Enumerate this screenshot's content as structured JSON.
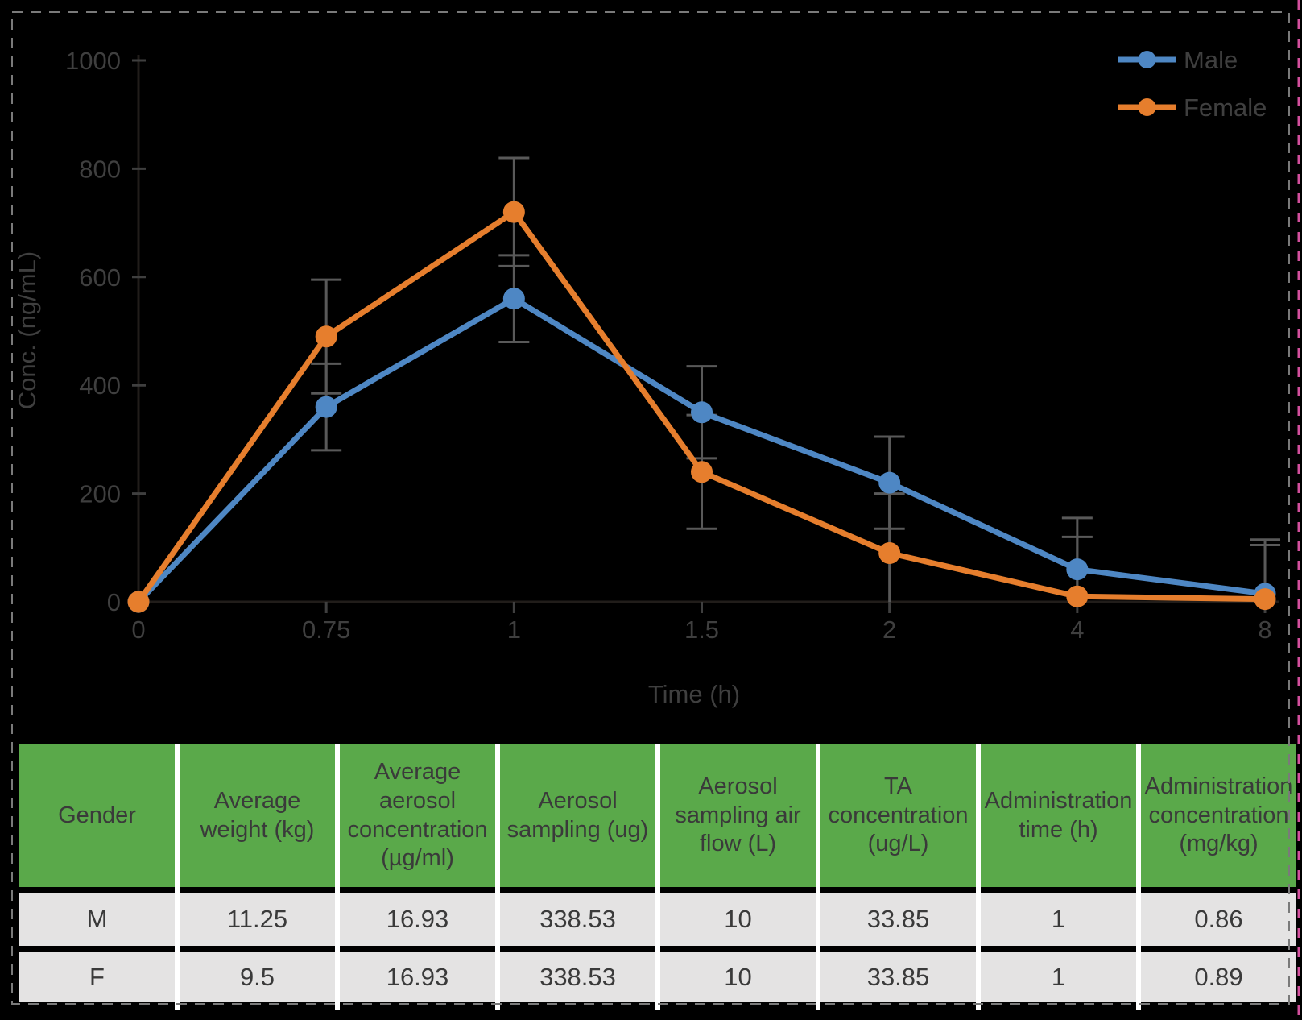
{
  "page": {
    "background": "#000000",
    "dashed_border_color": "#7a7a7a",
    "right_edge_line_color": "#d4509e"
  },
  "chart_data": {
    "type": "line",
    "title": "",
    "xlabel": "Time (h)",
    "ylabel": "Conc. (ng/mL)",
    "x_categories": [
      "0",
      "0.75",
      "1",
      "1.5",
      "2",
      "4",
      "8"
    ],
    "ylim": [
      0,
      1000
    ],
    "yticks": [
      0,
      200,
      400,
      600,
      800,
      1000
    ],
    "grid": "off",
    "legend_position": "top-right",
    "legend": [
      "Male",
      "Female"
    ],
    "series": [
      {
        "name": "Male",
        "color": "#4e87c4",
        "values": [
          0,
          360,
          560,
          350,
          220,
          60,
          15
        ],
        "error": [
          0,
          80,
          80,
          85,
          85,
          95,
          100
        ]
      },
      {
        "name": "Female",
        "color": "#e67e2d",
        "values": [
          0,
          490,
          720,
          240,
          90,
          10,
          5
        ],
        "error": [
          0,
          105,
          100,
          105,
          110,
          110,
          100
        ]
      }
    ],
    "error_bar_color": "#595959",
    "axis_color": "#211d1a",
    "tick_color": "#3f3f3f",
    "text_color": "#3f3f3f"
  },
  "table": {
    "header_bg": "#5aa94a",
    "row_bg": "#e4e3e3",
    "separator_color": "#ffffff",
    "text_color": "#3a3a3a",
    "columns": [
      "Gender",
      "Average weight (kg)",
      "Average aerosol concentration (µg/ml)",
      "Aerosol sampling (ug)",
      "Aerosol sampling air flow (L)",
      "TA concentration (ug/L)",
      "Administration time (h)",
      "Administration concentration (mg/kg)"
    ],
    "rows": [
      [
        "M",
        "11.25",
        "16.93",
        "338.53",
        "10",
        "33.85",
        "1",
        "0.86"
      ],
      [
        "F",
        "9.5",
        "16.93",
        "338.53",
        "10",
        "33.85",
        "1",
        "0.89"
      ]
    ]
  }
}
